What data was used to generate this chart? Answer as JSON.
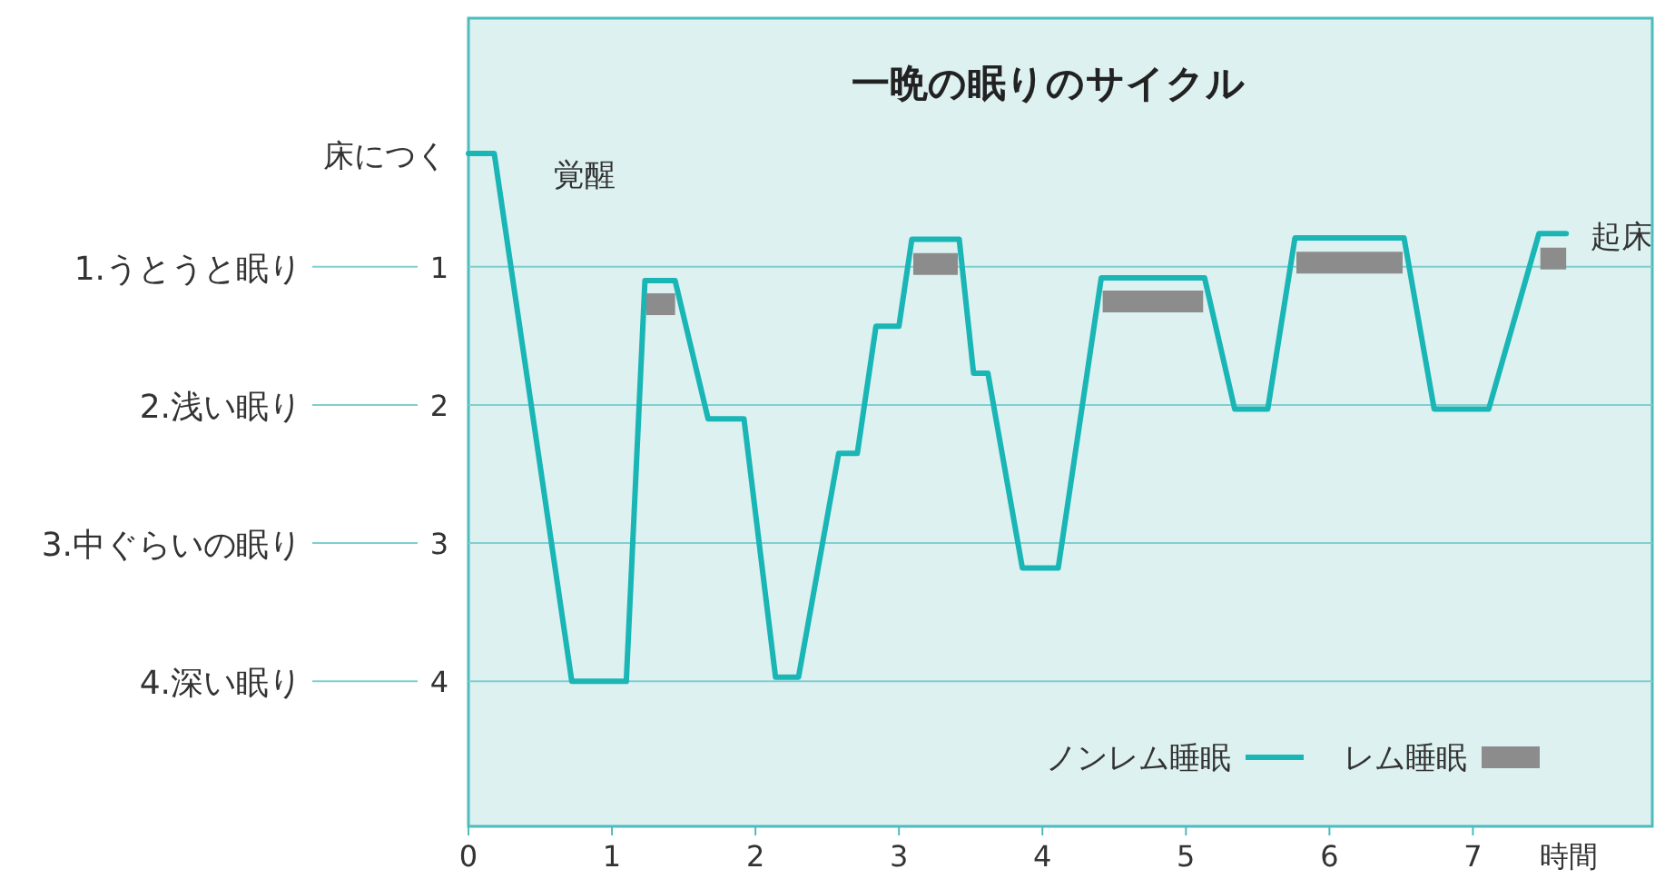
{
  "chart_data": {
    "type": "line",
    "title": "一晩の眠りのサイクル",
    "xlabel": "時間",
    "xlim": [
      0,
      8.25
    ],
    "ylim": [
      5.05,
      -0.8
    ],
    "xticks": [
      0,
      1,
      2,
      3,
      4,
      5,
      6,
      7
    ],
    "yticks": [
      1,
      2,
      3,
      4
    ],
    "grid": "y",
    "legend": "bottom right",
    "line_style": "solid",
    "series": [
      {
        "name": "ノンレム睡眠",
        "color": "#1ab5b5",
        "x": [
          0,
          0.18,
          0.72,
          1.1,
          1.23,
          1.44,
          1.67,
          1.92,
          2.14,
          2.3,
          2.58,
          2.71,
          2.84,
          3.0,
          3.09,
          3.42,
          3.52,
          3.62,
          3.86,
          4.11,
          4.41,
          5.13,
          5.34,
          5.57,
          5.76,
          6.52,
          6.73,
          7.11,
          7.46,
          7.65
        ],
        "values": [
          0.18,
          0.18,
          4.0,
          4.0,
          1.1,
          1.1,
          2.1,
          2.1,
          3.97,
          3.97,
          2.35,
          2.35,
          1.43,
          1.43,
          0.8,
          0.8,
          1.77,
          1.77,
          3.18,
          3.18,
          1.08,
          1.08,
          2.03,
          2.03,
          0.79,
          0.79,
          2.03,
          2.03,
          0.76,
          0.76
        ]
      },
      {
        "name": "レム睡眠",
        "color": "#8c8c8c",
        "x": [
          1.24,
          1.44
        ],
        "values": [
          1.27,
          1.27
        ]
      },
      {
        "color": "#8c8c8c",
        "x": [
          3.1,
          3.41
        ],
        "values": [
          0.98,
          0.98
        ]
      },
      {
        "color": "#8c8c8c",
        "x": [
          4.42,
          5.12
        ],
        "values": [
          1.25,
          1.25
        ]
      },
      {
        "color": "#8c8c8c",
        "x": [
          5.77,
          6.51
        ],
        "values": [
          0.97,
          0.97
        ]
      },
      {
        "color": "#8c8c8c",
        "x": [
          7.47,
          7.65
        ],
        "values": [
          0.94,
          0.94
        ]
      }
    ],
    "annotations": [
      {
        "text": "床につく",
        "x": 0,
        "y": 0.18
      },
      "覚醒",
      "起床",
      "1.うとうと眠り",
      "2.浅い眠り",
      "3.中ぐらいの眠り",
      "4.深い眠り"
    ]
  }
}
